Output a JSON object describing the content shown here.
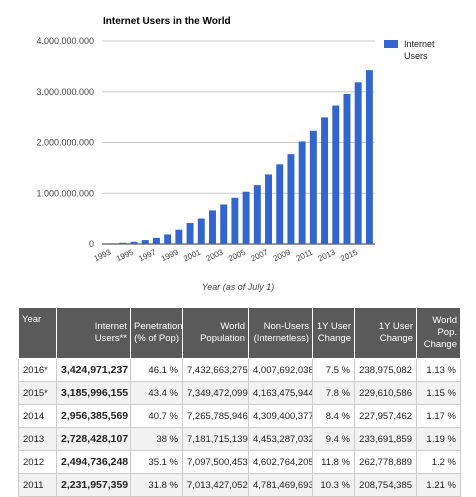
{
  "chart_data": {
    "type": "bar",
    "title": "Internet Users in the World",
    "xlabel": "Year (as of July 1)",
    "ylabel": "",
    "ylim": [
      0,
      4000000000
    ],
    "yticks": [
      0,
      1000000000,
      2000000000,
      3000000000,
      4000000000
    ],
    "ytick_labels": [
      "0",
      "1.000.000.000",
      "2.000.000.000",
      "3.000.000.000",
      "4.000.000.000"
    ],
    "x_tick_labels": [
      "1993",
      "1995",
      "1997",
      "1999",
      "2001",
      "2003",
      "2005",
      "2007",
      "2009",
      "2011",
      "2013",
      "2015"
    ],
    "categories": [
      "1993",
      "1994",
      "1995",
      "1996",
      "1997",
      "1998",
      "1999",
      "2000",
      "2001",
      "2002",
      "2003",
      "2004",
      "2005",
      "2006",
      "2007",
      "2008",
      "2009",
      "2010",
      "2011",
      "2012",
      "2013",
      "2014",
      "2015",
      "2016"
    ],
    "series": [
      {
        "name": "Internet Users",
        "color": "#3366cc",
        "values": [
          14000000,
          25000000,
          44000000,
          77000000,
          121000000,
          188000000,
          281000000,
          413000000,
          501000000,
          662000000,
          778000000,
          910000000,
          1030000000,
          1160000000,
          1370000000,
          1570000000,
          1770000000,
          2020000000,
          2231957359,
          2494736248,
          2728428107,
          2956385569,
          3185996155,
          3424971237
        ]
      }
    ],
    "grid": true,
    "legend": "top-right"
  },
  "table": {
    "headers": [
      "Year",
      "Internet Users**",
      "Penetration (% of Pop)",
      "World Population",
      "Non-Users (Internetless)",
      "1Y User Change",
      "1Y User Change",
      "World Pop. Change"
    ],
    "rows": [
      [
        "2016*",
        "3,424,971,237",
        "46.1 %",
        "7,432,663,275",
        "4,007,692,038",
        "7.5 %",
        "238,975,082",
        "1.13 %"
      ],
      [
        "2015*",
        "3,185,996,155",
        "43.4 %",
        "7,349,472,099",
        "4,163,475,944",
        "7.8 %",
        "229,610,586",
        "1.15 %"
      ],
      [
        "2014",
        "2,956,385,569",
        "40.7 %",
        "7,265,785,946",
        "4,309,400,377",
        "8.4 %",
        "227,957,462",
        "1.17 %"
      ],
      [
        "2013",
        "2,728,428,107",
        "38 %",
        "7,181,715,139",
        "4,453,287,032",
        "9.4 %",
        "233,691,859",
        "1.19 %"
      ],
      [
        "2012",
        "2,494,736,248",
        "35.1 %",
        "7,097,500,453",
        "4,602,764,205",
        "11.8 %",
        "262,778,889",
        "1.2 %"
      ],
      [
        "2011",
        "2,231,957,359",
        "31.8 %",
        "7,013,427,052",
        "4,781,469,693",
        "10.3 %",
        "208,754,385",
        "1.21 %"
      ]
    ]
  }
}
